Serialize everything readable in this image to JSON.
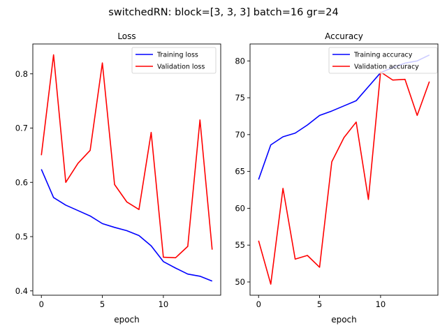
{
  "figure": {
    "title": "switchedRN: block=[3, 3, 3] batch=16 gr=24"
  },
  "chart_data": [
    {
      "type": "line",
      "title": "Loss",
      "xlabel": "epoch",
      "ylabel": "",
      "x": [
        0,
        1,
        2,
        3,
        4,
        5,
        6,
        7,
        8,
        9,
        10,
        11,
        12,
        13,
        14
      ],
      "xticks": [
        0,
        5,
        10
      ],
      "yticks": [
        0.4,
        0.5,
        0.6,
        0.7,
        0.8
      ],
      "xlim": [
        -0.7,
        14.7
      ],
      "ylim": [
        0.392,
        0.855
      ],
      "grid": false,
      "legend_position": "upper right",
      "series": [
        {
          "name": "Training loss",
          "color": "#0000ff",
          "values": [
            0.624,
            0.572,
            0.558,
            0.548,
            0.538,
            0.524,
            0.517,
            0.511,
            0.502,
            0.483,
            0.454,
            0.442,
            0.431,
            0.427,
            0.418
          ]
        },
        {
          "name": "Validation loss",
          "color": "#ff0000",
          "values": [
            0.65,
            0.835,
            0.6,
            0.635,
            0.659,
            0.82,
            0.596,
            0.564,
            0.55,
            0.692,
            0.462,
            0.461,
            0.482,
            0.715,
            0.476
          ]
        }
      ]
    },
    {
      "type": "line",
      "title": "Accuracy",
      "xlabel": "epoch",
      "ylabel": "",
      "x": [
        0,
        1,
        2,
        3,
        4,
        5,
        6,
        7,
        8,
        9,
        10,
        11,
        12,
        13,
        14
      ],
      "xticks": [
        0,
        5,
        10
      ],
      "yticks": [
        50,
        55,
        60,
        65,
        70,
        75,
        80
      ],
      "xlim": [
        -0.7,
        14.7
      ],
      "ylim": [
        48.2,
        82.3
      ],
      "grid": false,
      "legend_position": "upper right",
      "series": [
        {
          "name": "Training accuracy",
          "color": "#0000ff",
          "values": [
            63.9,
            68.6,
            69.7,
            70.2,
            71.3,
            72.6,
            73.2,
            73.9,
            74.6,
            76.5,
            78.4,
            79.1,
            79.7,
            80.0,
            80.8
          ]
        },
        {
          "name": "Validation accuracy",
          "color": "#ff0000",
          "values": [
            55.6,
            49.7,
            62.7,
            53.1,
            53.6,
            52.0,
            66.3,
            69.6,
            71.7,
            61.2,
            78.5,
            77.4,
            77.5,
            72.6,
            77.2
          ]
        }
      ]
    }
  ]
}
